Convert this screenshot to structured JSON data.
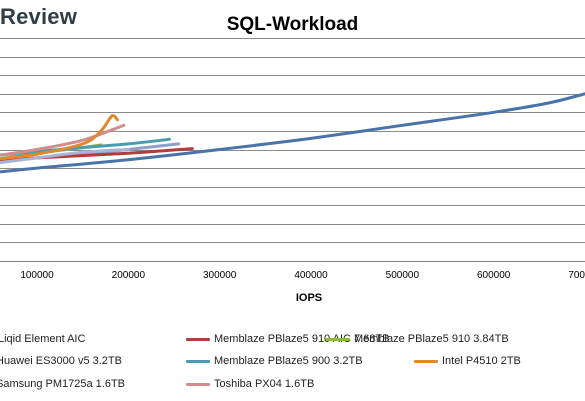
{
  "brand": {
    "text": "Review"
  },
  "chart_data": {
    "type": "line",
    "title": "SQL-Workload",
    "xlabel": "IOPS",
    "ylabel": "",
    "xlim": [
      60000,
      700000
    ],
    "x_ticks": [
      100000,
      200000,
      300000,
      400000,
      500000,
      600000,
      700000
    ],
    "x_tick_labels": [
      "100000",
      "200000",
      "300000",
      "400000",
      "500000",
      "600000",
      "700000"
    ],
    "ylim": [
      0,
      12
    ],
    "y_gridlines": [
      0,
      1,
      2,
      3,
      4,
      5,
      6,
      7,
      8,
      9,
      10,
      11,
      12
    ],
    "grid": "horizontal",
    "legend_position": "bottom",
    "series": [
      {
        "name": "Liqid Element AIC",
        "color": "#4a73a8",
        "points": [
          [
            60000,
            4.8
          ],
          [
            100000,
            5.0
          ],
          [
            200000,
            5.45
          ],
          [
            300000,
            6.0
          ],
          [
            400000,
            6.6
          ],
          [
            500000,
            7.3
          ],
          [
            600000,
            8.0
          ],
          [
            660000,
            8.5
          ],
          [
            700000,
            9.0
          ]
        ]
      },
      {
        "name": "Memblaze PBlaze5 910 AIC 7.68TB",
        "color": "#b43c3c",
        "points": [
          [
            60000,
            5.4
          ],
          [
            100000,
            5.55
          ],
          [
            200000,
            5.8
          ],
          [
            270000,
            6.05
          ]
        ]
      },
      {
        "name": "Memblaze PBlaze5 910 3.84TB",
        "color": "#8db54a",
        "points": [
          [
            60000,
            5.5
          ],
          [
            100000,
            5.8
          ],
          [
            150000,
            6.1
          ],
          [
            170000,
            6.25
          ]
        ]
      },
      {
        "name": "Huawei ES3000 v5 3.2TB",
        "color": "#8ca0c8",
        "points": [
          [
            60000,
            5.3
          ],
          [
            100000,
            5.55
          ],
          [
            180000,
            5.9
          ],
          [
            255000,
            6.3
          ]
        ]
      },
      {
        "name": "Memblaze PBlaze5 900 3.2TB",
        "color": "#4a9bb0",
        "points": [
          [
            60000,
            5.7
          ],
          [
            100000,
            5.9
          ],
          [
            150000,
            6.1
          ],
          [
            200000,
            6.3
          ],
          [
            245000,
            6.55
          ]
        ]
      },
      {
        "name": "Intel P4510 2TB",
        "color": "#e0882e",
        "points": [
          [
            60000,
            5.5
          ],
          [
            100000,
            5.75
          ],
          [
            150000,
            6.3
          ],
          [
            170000,
            7.0
          ],
          [
            182000,
            7.8
          ],
          [
            188000,
            7.6
          ]
        ]
      },
      {
        "name": "Samsung PM1725a 1.6TB",
        "color": "#a8b4d6",
        "points": [
          [
            60000,
            5.3
          ],
          [
            100000,
            5.55
          ],
          [
            150000,
            5.85
          ],
          [
            200000,
            6.0
          ]
        ]
      },
      {
        "name": "Toshiba PX04 1.6TB",
        "color": "#d48c8c",
        "points": [
          [
            60000,
            5.7
          ],
          [
            100000,
            6.0
          ],
          [
            150000,
            6.5
          ],
          [
            195000,
            7.3
          ]
        ]
      }
    ]
  }
}
